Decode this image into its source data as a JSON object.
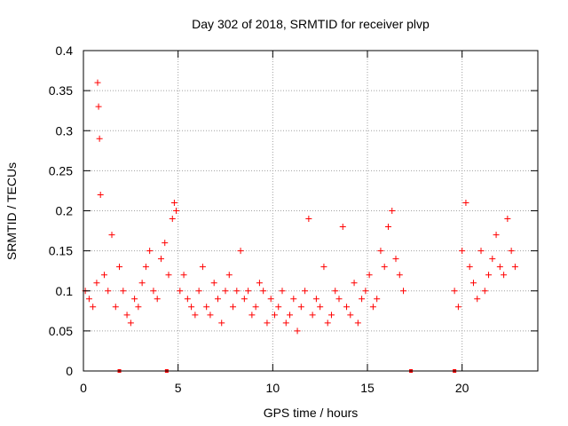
{
  "chart_data": {
    "type": "scatter",
    "title": "Day 302 of 2018, SRMTID for receiver plvp",
    "xlabel": "GPS time / hours",
    "ylabel": "SRMTID / TECUs",
    "xlim": [
      0,
      24
    ],
    "ylim": [
      0,
      0.4
    ],
    "xticks": [
      0,
      5,
      10,
      15,
      20
    ],
    "xtick_labels": [
      "0",
      "5",
      "10",
      "15",
      "20"
    ],
    "yticks": [
      0,
      0.05,
      0.1,
      0.15,
      0.2,
      0.25,
      0.3,
      0.35,
      0.4
    ],
    "ytick_labels": [
      "0",
      "0.05",
      "0.1",
      "0.15",
      "0.2",
      "0.25",
      "0.3",
      "0.35",
      "0.4"
    ],
    "grid": true,
    "marker": "plus",
    "color": "#ff0000",
    "series": [
      {
        "name": "SRMTID",
        "x": [
          0.1,
          0.3,
          0.5,
          0.7,
          0.75,
          0.8,
          0.85,
          0.9,
          1.1,
          1.3,
          1.5,
          1.7,
          1.9,
          2.1,
          2.3,
          2.5,
          2.7,
          2.9,
          3.1,
          3.3,
          3.5,
          3.7,
          3.9,
          4.1,
          4.3,
          4.5,
          4.7,
          4.8,
          4.9,
          5.1,
          5.3,
          5.5,
          5.7,
          5.9,
          6.1,
          6.3,
          6.5,
          6.7,
          6.9,
          7.1,
          7.3,
          7.5,
          7.7,
          7.9,
          8.1,
          8.3,
          8.5,
          8.7,
          8.9,
          9.1,
          9.3,
          9.5,
          9.7,
          9.9,
          10.1,
          10.3,
          10.5,
          10.7,
          10.9,
          11.1,
          11.3,
          11.5,
          11.7,
          11.9,
          12.1,
          12.3,
          12.5,
          12.7,
          12.9,
          13.1,
          13.3,
          13.5,
          13.7,
          13.9,
          14.1,
          14.3,
          14.5,
          14.7,
          14.9,
          15.1,
          15.3,
          15.5,
          15.7,
          15.9,
          16.1,
          16.3,
          16.5,
          16.7,
          16.9,
          19.6,
          19.8,
          20.0,
          20.2,
          20.4,
          20.6,
          20.8,
          21.0,
          21.2,
          21.4,
          21.6,
          21.8,
          22.0,
          22.2,
          22.4,
          22.6,
          22.8
        ],
        "y": [
          0.1,
          0.09,
          0.08,
          0.11,
          0.36,
          0.33,
          0.29,
          0.22,
          0.12,
          0.1,
          0.17,
          0.08,
          0.13,
          0.1,
          0.07,
          0.06,
          0.09,
          0.08,
          0.11,
          0.13,
          0.15,
          0.1,
          0.09,
          0.14,
          0.16,
          0.12,
          0.19,
          0.21,
          0.2,
          0.1,
          0.12,
          0.09,
          0.08,
          0.07,
          0.1,
          0.13,
          0.08,
          0.07,
          0.11,
          0.09,
          0.06,
          0.1,
          0.12,
          0.08,
          0.1,
          0.15,
          0.09,
          0.1,
          0.07,
          0.08,
          0.11,
          0.1,
          0.06,
          0.09,
          0.07,
          0.08,
          0.1,
          0.06,
          0.07,
          0.09,
          0.05,
          0.08,
          0.1,
          0.19,
          0.07,
          0.09,
          0.08,
          0.13,
          0.06,
          0.07,
          0.1,
          0.09,
          0.18,
          0.08,
          0.07,
          0.11,
          0.06,
          0.09,
          0.1,
          0.12,
          0.08,
          0.09,
          0.15,
          0.13,
          0.18,
          0.2,
          0.14,
          0.12,
          0.1,
          0.1,
          0.08,
          0.15,
          0.21,
          0.13,
          0.11,
          0.09,
          0.15,
          0.1,
          0.12,
          0.14,
          0.17,
          0.13,
          0.12,
          0.19,
          0.15,
          0.13
        ]
      }
    ],
    "zero_markers_x": [
      1.9,
      4.4,
      17.3,
      19.6
    ]
  }
}
